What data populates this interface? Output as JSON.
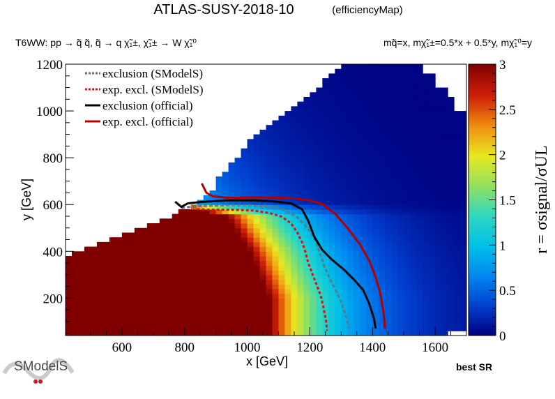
{
  "chart_data": {
    "type": "heatmap",
    "title": "ATLAS-SUSY-2018-10",
    "subtitle": "(efficiencyMap)",
    "process_label": "T6WW: pp → q̃ q̃, q̃ → q χ̃₁±, χ̃₁± → W χ̃₁⁰",
    "mass_label": "mq̃=x, mχ̃₁±=0.5*x + 0.5*y, mχ̃₁⁰=y",
    "xlabel": "x [GeV]",
    "ylabel": "y [GeV]",
    "zlabel": "r = σsignal/σUL",
    "xlim": [
      420,
      1700
    ],
    "ylim": [
      40,
      1200
    ],
    "zlim": [
      0,
      3
    ],
    "x_ticks": [
      600,
      800,
      1000,
      1200,
      1400,
      1600
    ],
    "y_ticks": [
      200,
      400,
      600,
      800,
      1000,
      1200
    ],
    "z_ticks": [
      0,
      0.5,
      1,
      1.5,
      2,
      2.5,
      3
    ],
    "z_tick_labels": [
      "0",
      "0.5",
      "1",
      "1.5",
      "2",
      "2.5",
      "3"
    ],
    "colormap": [
      "#000080",
      "#0050e0",
      "#00a8f0",
      "#40d8c8",
      "#a0e050",
      "#f0e020",
      "#f09010",
      "#e03010",
      "#a00000",
      "#800000"
    ],
    "grid": false,
    "legend_position": "top-left",
    "legend": [
      {
        "label": "exclusion (SModelS)",
        "color": "#666666",
        "style": "dotted"
      },
      {
        "label": "exp. excl. (SModelS)",
        "color": "#e01010",
        "style": "dotted"
      },
      {
        "label": "exclusion (official)",
        "color": "#000000",
        "style": "solid"
      },
      {
        "label": "exp. excl. (official)",
        "color": "#b00000",
        "style": "solid"
      }
    ],
    "curves": [
      {
        "name": "exclusion (SModelS)",
        "color": "#5a7a88",
        "dash": "5,3",
        "x": [
          790,
          830,
          880,
          950,
          1010,
          1060,
          1100,
          1130,
          1160,
          1190,
          1215,
          1230,
          1245,
          1265,
          1290,
          1305,
          1318,
          1325
        ],
        "y": [
          585,
          592,
          595,
          597,
          596,
          592,
          585,
          570,
          545,
          505,
          455,
          400,
          340,
          280,
          215,
          165,
          110,
          70
        ]
      },
      {
        "name": "exp. excl. (SModelS)",
        "color": "#e01010",
        "dash": "4,3",
        "x": [
          840,
          880,
          950,
          1020,
          1070,
          1110,
          1140,
          1160,
          1175,
          1185,
          1195,
          1215,
          1235,
          1245,
          1252,
          1255
        ],
        "y": [
          580,
          578,
          578,
          574,
          564,
          548,
          520,
          480,
          440,
          400,
          350,
          280,
          210,
          150,
          100,
          60
        ]
      },
      {
        "name": "exclusion (official)",
        "color": "#000000",
        "dash": "",
        "x": [
          770,
          790,
          810,
          860,
          940,
          1020,
          1080,
          1140,
          1175,
          1195,
          1215,
          1240,
          1270,
          1310,
          1340,
          1370,
          1390,
          1405,
          1410
        ],
        "y": [
          612,
          590,
          605,
          612,
          618,
          618,
          614,
          605,
          580,
          530,
          460,
          405,
          365,
          320,
          280,
          235,
          175,
          110,
          70
        ]
      },
      {
        "name": "exp. excl. (official)",
        "color": "#b00000",
        "dash": "",
        "x": [
          855,
          870,
          890,
          950,
          1010,
          1080,
          1150,
          1200,
          1240,
          1280,
          1320,
          1360,
          1390,
          1410,
          1425,
          1435,
          1440
        ],
        "y": [
          690,
          650,
          635,
          628,
          630,
          630,
          626,
          618,
          602,
          562,
          500,
          430,
          360,
          290,
          220,
          140,
          70
        ]
      }
    ]
  },
  "footer": {
    "best_sr": "best SR",
    "logo_text": "SModelS"
  }
}
